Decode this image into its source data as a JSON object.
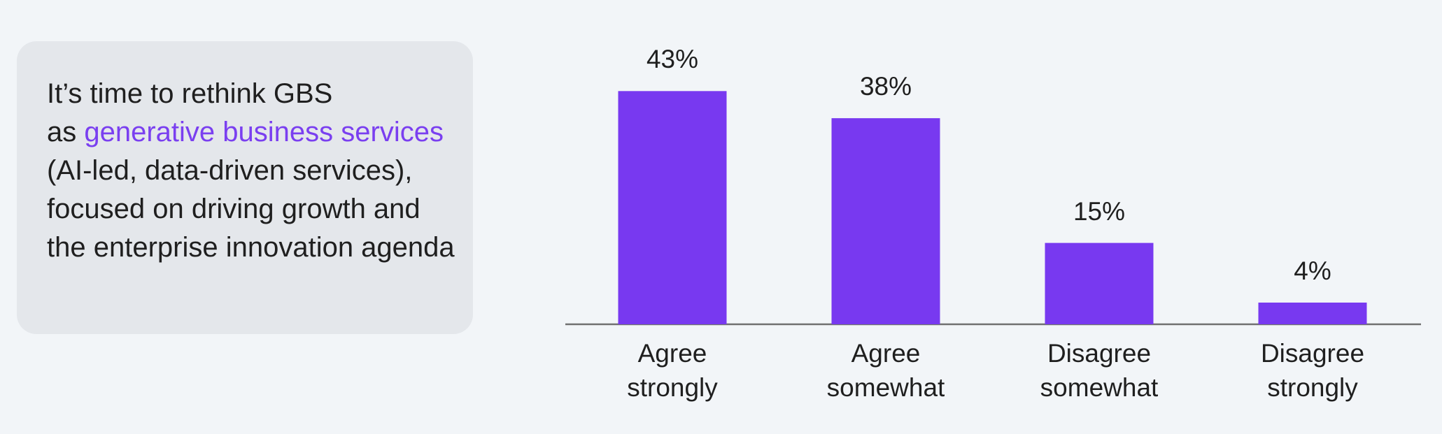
{
  "panel": {
    "line1": "It’s time to rethink GBS",
    "lead": "as ",
    "highlight": "generative business services",
    "rest": " (AI-led, data-driven services), focused on driving growth and the enterprise innovation agenda"
  },
  "chart_data": {
    "type": "bar",
    "categories": [
      "Agree strongly",
      "Agree somewhat",
      "Disagree somewhat",
      "Disagree strongly"
    ],
    "values": [
      43,
      38,
      15,
      4
    ],
    "value_labels": [
      "43%",
      "38%",
      "15%",
      "4%"
    ],
    "color": "#7839f0"
  }
}
